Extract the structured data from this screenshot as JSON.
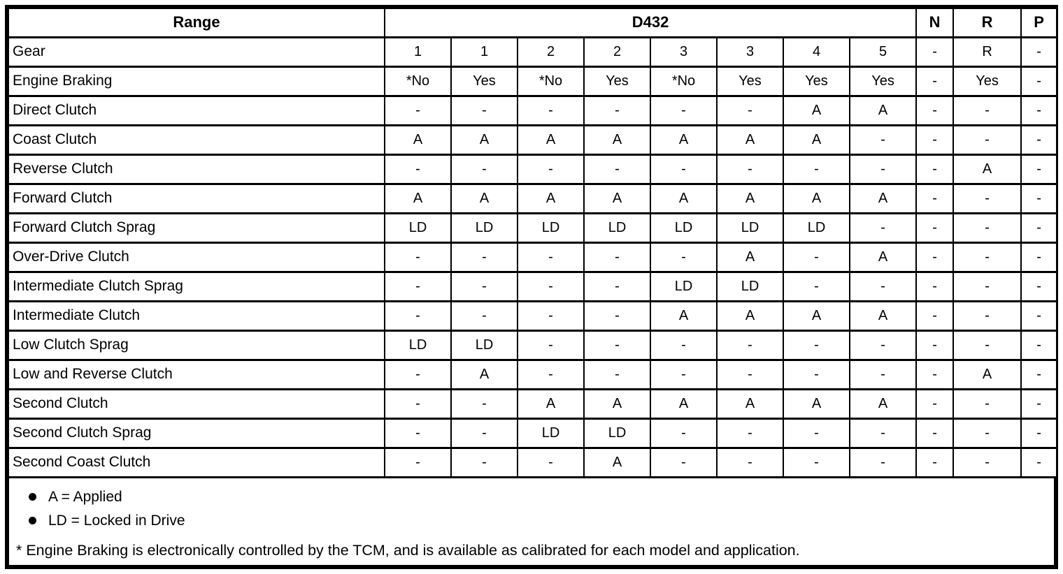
{
  "colors": {
    "border": "#000000",
    "text": "#000000",
    "background": "#ffffff"
  },
  "table": {
    "header": {
      "range_label": "Range",
      "group_label": "D432",
      "n_label": "N",
      "r_label": "R",
      "p_label": "P"
    },
    "rows": [
      {
        "label": "Gear",
        "values": [
          "1",
          "1",
          "2",
          "2",
          "3",
          "3",
          "4",
          "5",
          "-",
          "R",
          "-"
        ]
      },
      {
        "label": "Engine Braking",
        "values": [
          "*No",
          "Yes",
          "*No",
          "Yes",
          "*No",
          "Yes",
          "Yes",
          "Yes",
          "-",
          "Yes",
          "-"
        ]
      },
      {
        "label": "Direct Clutch",
        "values": [
          "-",
          "-",
          "-",
          "-",
          "-",
          "-",
          "A",
          "A",
          "-",
          "-",
          "-"
        ]
      },
      {
        "label": "Coast Clutch",
        "values": [
          "A",
          "A",
          "A",
          "A",
          "A",
          "A",
          "A",
          "-",
          "-",
          "-",
          "-"
        ]
      },
      {
        "label": "Reverse Clutch",
        "values": [
          "-",
          "-",
          "-",
          "-",
          "-",
          "-",
          "-",
          "-",
          "-",
          "A",
          "-"
        ]
      },
      {
        "label": "Forward Clutch",
        "values": [
          "A",
          "A",
          "A",
          "A",
          "A",
          "A",
          "A",
          "A",
          "-",
          "-",
          "-"
        ]
      },
      {
        "label": "Forward Clutch Sprag",
        "values": [
          "LD",
          "LD",
          "LD",
          "LD",
          "LD",
          "LD",
          "LD",
          "-",
          "-",
          "-",
          "-"
        ]
      },
      {
        "label": "Over-Drive Clutch",
        "values": [
          "-",
          "-",
          "-",
          "-",
          "-",
          "A",
          "-",
          "A",
          "-",
          "-",
          "-"
        ]
      },
      {
        "label": "Intermediate Clutch Sprag",
        "values": [
          "-",
          "-",
          "-",
          "-",
          "LD",
          "LD",
          "-",
          "-",
          "-",
          "-",
          "-"
        ]
      },
      {
        "label": "Intermediate Clutch",
        "values": [
          "-",
          "-",
          "-",
          "-",
          "A",
          "A",
          "A",
          "A",
          "-",
          "-",
          "-"
        ]
      },
      {
        "label": "Low Clutch Sprag",
        "values": [
          "LD",
          "LD",
          "-",
          "-",
          "-",
          "-",
          "-",
          "-",
          "-",
          "-",
          "-"
        ]
      },
      {
        "label": "Low and Reverse Clutch",
        "values": [
          "-",
          "A",
          "-",
          "-",
          "-",
          "-",
          "-",
          "-",
          "-",
          "A",
          "-"
        ]
      },
      {
        "label": "Second Clutch",
        "values": [
          "-",
          "-",
          "A",
          "A",
          "A",
          "A",
          "A",
          "A",
          "-",
          "-",
          "-"
        ]
      },
      {
        "label": "Second Clutch Sprag",
        "values": [
          "-",
          "-",
          "LD",
          "LD",
          "-",
          "-",
          "-",
          "-",
          "-",
          "-",
          "-"
        ]
      },
      {
        "label": "Second Coast Clutch",
        "values": [
          "-",
          "-",
          "-",
          "A",
          "-",
          "-",
          "-",
          "-",
          "-",
          "-",
          "-"
        ]
      }
    ]
  },
  "legend": {
    "items": [
      "A = Applied",
      "LD = Locked in Drive"
    ]
  },
  "footnote": "* Engine Braking is electronically controlled by the TCM, and is available as calibrated for each model and application."
}
